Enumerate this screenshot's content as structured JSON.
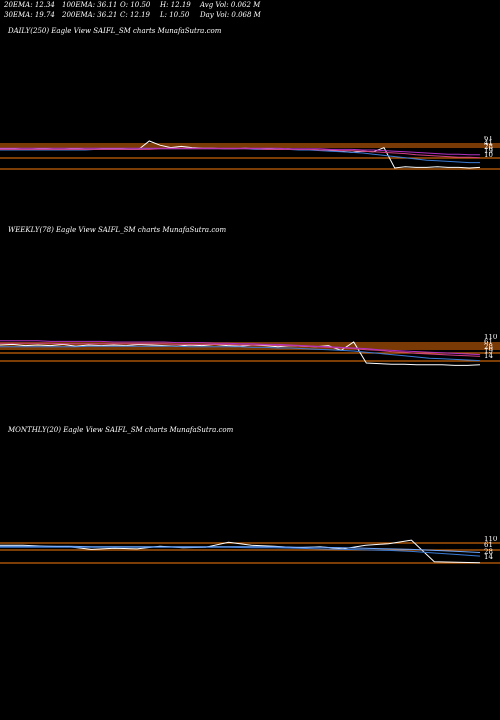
{
  "header": {
    "row1": [
      "20EMA: 12.34",
      "100EMA: 36.11",
      "O: 10.50",
      "H: 12.19",
      "Avg Vol: 0.062  M"
    ],
    "row2": [
      "30EMA: 19.74",
      "200EMA: 36.21",
      "C: 12.19",
      "L: 10.50",
      "Day Vol: 0.068  M"
    ]
  },
  "colors": {
    "background": "#000000",
    "orange": "#c8640a",
    "dark_orange": "#7a3a06",
    "white": "#ffffff",
    "blue": "#3a7bd5",
    "pink": "#d04080",
    "magenta": "#b030c0",
    "tick_text": "#ffffff"
  },
  "chart_data": [
    {
      "type": "line",
      "title": "DAILY(250) Eagle   View  SAIFL_SM charts MunafaSutra.com",
      "right_ticks": [
        "61",
        "41",
        "28",
        "19",
        "10"
      ],
      "series": [
        {
          "color": "#ffffff",
          "values": [
            42,
            42,
            41,
            41,
            42,
            41,
            41,
            42,
            41,
            41,
            42,
            42,
            41,
            41,
            55,
            48,
            44,
            46,
            44,
            43,
            43,
            42,
            42,
            43,
            42,
            42,
            41,
            42,
            41,
            41,
            40,
            39,
            38,
            36,
            38,
            37,
            44,
            10,
            12,
            11,
            11,
            12,
            11,
            11,
            10,
            11
          ]
        },
        {
          "color": "#3a7bd5",
          "values": [
            40,
            40,
            40,
            40,
            40,
            40,
            40,
            40,
            40,
            41,
            41,
            41,
            41,
            41,
            42,
            42,
            42,
            42,
            42,
            42,
            42,
            42,
            42,
            42,
            41,
            41,
            41,
            41,
            40,
            40,
            39,
            38,
            37,
            36,
            35,
            33,
            31,
            29,
            27,
            25,
            23,
            22,
            21,
            20,
            19,
            19
          ]
        },
        {
          "color": "#d04080",
          "values": [
            41,
            41,
            41,
            41,
            41,
            41,
            41,
            41,
            41,
            41,
            41,
            41,
            41,
            41,
            41,
            42,
            42,
            42,
            42,
            42,
            42,
            42,
            42,
            42,
            42,
            41,
            41,
            41,
            41,
            41,
            40,
            40,
            39,
            39,
            38,
            37,
            36,
            35,
            34,
            32,
            31,
            30,
            29,
            28,
            28,
            27
          ]
        },
        {
          "color": "#b030c0",
          "values": [
            43,
            43,
            43,
            43,
            43,
            43,
            43,
            43,
            43,
            43,
            43,
            43,
            43,
            43,
            43,
            43,
            43,
            43,
            43,
            43,
            43,
            43,
            43,
            43,
            43,
            43,
            43,
            42,
            42,
            42,
            42,
            41,
            41,
            41,
            40,
            40,
            39,
            38,
            37,
            36,
            35,
            34,
            33,
            33,
            32,
            32
          ]
        }
      ]
    },
    {
      "type": "line",
      "title": "WEEKLY(78) Eagle   View  SAIFL_SM charts MunafaSutra.com",
      "right_ticks": [
        "110",
        "61",
        "28",
        "19",
        "14"
      ],
      "series": [
        {
          "color": "#ffffff",
          "values": [
            45,
            46,
            44,
            45,
            44,
            46,
            43,
            45,
            44,
            45,
            44,
            46,
            45,
            44,
            43,
            45,
            44,
            46,
            44,
            43,
            45,
            44,
            42,
            44,
            43,
            42,
            44,
            36,
            50,
            15,
            14,
            13,
            13,
            12,
            12,
            12,
            11,
            11,
            12
          ]
        },
        {
          "color": "#3a7bd5",
          "values": [
            42,
            42,
            42,
            42,
            42,
            42,
            42,
            43,
            43,
            43,
            43,
            43,
            43,
            43,
            43,
            42,
            42,
            42,
            42,
            42,
            41,
            41,
            40,
            40,
            39,
            38,
            37,
            36,
            35,
            33,
            31,
            29,
            27,
            25,
            23,
            22,
            21,
            20,
            19
          ]
        },
        {
          "color": "#d04080",
          "values": [
            48,
            48,
            48,
            48,
            48,
            47,
            47,
            47,
            47,
            47,
            47,
            47,
            47,
            47,
            46,
            46,
            46,
            46,
            46,
            45,
            45,
            45,
            44,
            44,
            43,
            42,
            41,
            40,
            39,
            37,
            36,
            34,
            33,
            31,
            30,
            29,
            28,
            27,
            26
          ]
        },
        {
          "color": "#b030c0",
          "values": [
            52,
            52,
            52,
            52,
            51,
            51,
            51,
            51,
            51,
            50,
            50,
            50,
            50,
            50,
            49,
            49,
            49,
            48,
            48,
            47,
            47,
            46,
            46,
            45,
            44,
            43,
            42,
            41,
            40,
            39,
            37,
            36,
            35,
            34,
            33,
            32,
            31,
            30,
            29
          ]
        }
      ]
    },
    {
      "type": "line",
      "title": "MONTHLY(20) Eagle   View  SAIFL_SM charts MunafaSutra.com",
      "right_ticks": [
        "110",
        "61",
        "28",
        "14"
      ],
      "series": [
        {
          "color": "#ffffff",
          "values": [
            52,
            52,
            50,
            49,
            44,
            46,
            45,
            50,
            47,
            48,
            58,
            52,
            50,
            47,
            49,
            45,
            52,
            55,
            62,
            20,
            19,
            18
          ]
        },
        {
          "color": "#3a7bd5",
          "values": [
            48,
            48,
            48,
            48,
            48,
            48,
            48,
            48,
            48,
            48,
            48,
            47,
            47,
            46,
            45,
            44,
            43,
            42,
            40,
            37,
            34,
            31
          ]
        },
        {
          "color": "#6fa8ff",
          "values": [
            50,
            50,
            50,
            50,
            49,
            49,
            49,
            49,
            49,
            49,
            49,
            49,
            49,
            48,
            48,
            47,
            46,
            45,
            44,
            42,
            40,
            38
          ]
        }
      ]
    }
  ]
}
